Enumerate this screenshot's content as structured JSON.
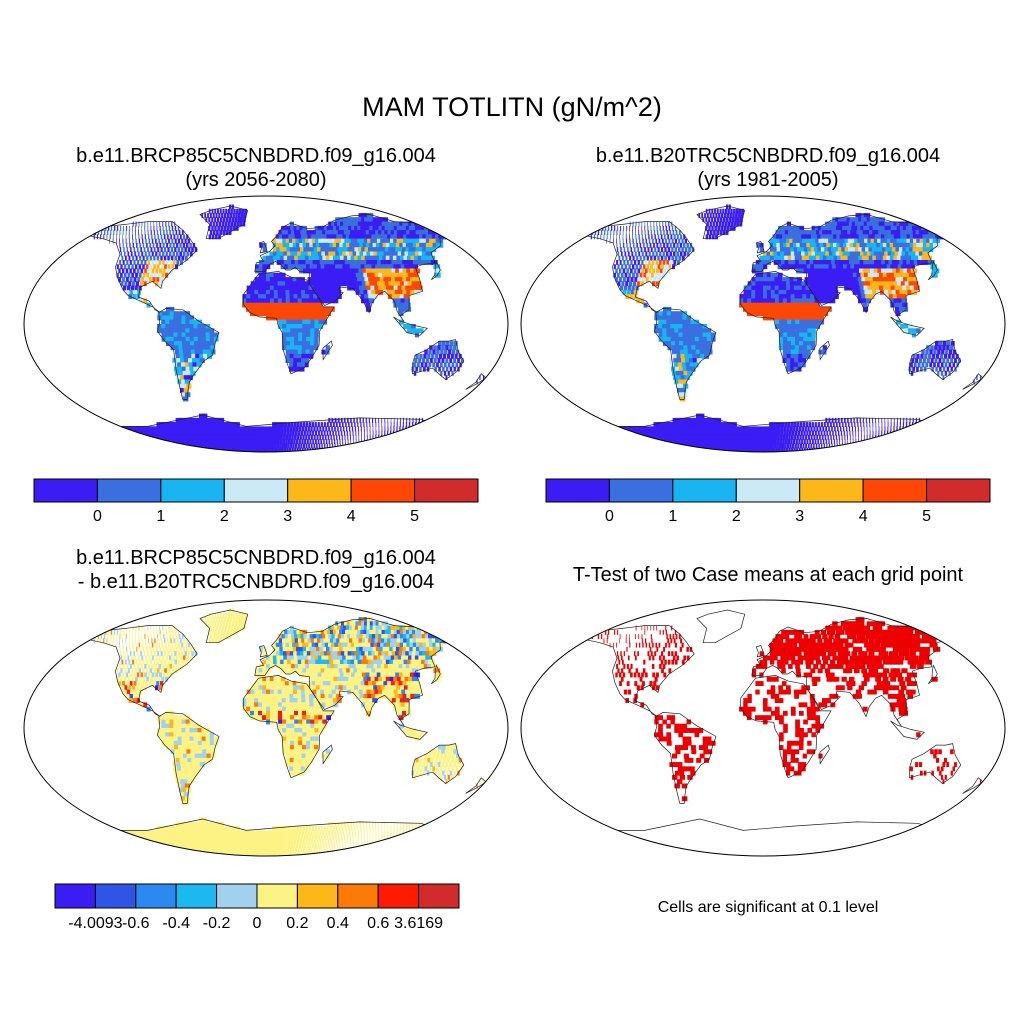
{
  "figure": {
    "title": "MAM TOTLITN (gN/m^2)"
  },
  "chart_data": [
    {
      "type": "heatmap",
      "title": "b.e11.BRCP85C5CNBDRD.f09_g16.004",
      "subtitle": "(yrs 2056-2080)",
      "colorbar": {
        "colors": [
          "#3b1cf5",
          "#3a6fe0",
          "#19b4f2",
          "#cce9f7",
          "#fdb718",
          "#fd4805",
          "#d12b2b"
        ],
        "tick_labels": [
          "0",
          "1",
          "2",
          "3",
          "4",
          "5"
        ]
      }
    },
    {
      "type": "heatmap",
      "title": "b.e11.B20TRC5CNBDRD.f09_g16.004",
      "subtitle": "(yrs 1981-2005)",
      "colorbar": {
        "colors": [
          "#3b1cf5",
          "#3a6fe0",
          "#19b4f2",
          "#cce9f7",
          "#fdb718",
          "#fd4805",
          "#d12b2b"
        ],
        "tick_labels": [
          "0",
          "1",
          "2",
          "3",
          "4",
          "5"
        ]
      }
    },
    {
      "type": "heatmap",
      "title": "b.e11.BRCP85C5CNBDRD.f09_g16.004",
      "subtitle": "- b.e11.B20TRC5CNBDRD.f09_g16.004",
      "colorbar": {
        "colors": [
          "#3b1cf5",
          "#2f55e6",
          "#2a8af0",
          "#1cb8f0",
          "#9fd2ee",
          "#fdf385",
          "#fdb718",
          "#fd7a0a",
          "#fd1c00",
          "#d12b2b"
        ],
        "tick_labels": [
          "-4.0093",
          "-0.6",
          "-0.4",
          "-0.2",
          "0",
          "0.2",
          "0.4",
          "0.6",
          "3.6169"
        ]
      }
    },
    {
      "type": "heatmap",
      "title": "T-Test of two Case means at each grid point",
      "note": "Cells are significant at 0.1 level",
      "significant_color": "#ee0000"
    }
  ]
}
